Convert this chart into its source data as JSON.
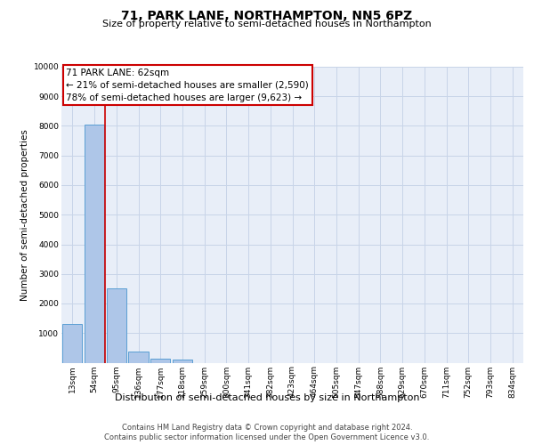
{
  "title": "71, PARK LANE, NORTHAMPTON, NN5 6PZ",
  "subtitle": "Size of property relative to semi-detached houses in Northampton",
  "xlabel_bottom": "Distribution of semi-detached houses by size in Northampton",
  "ylabel": "Number of semi-detached properties",
  "footer_line1": "Contains HM Land Registry data © Crown copyright and database right 2024.",
  "footer_line2": "Contains public sector information licensed under the Open Government Licence v3.0.",
  "categories": [
    "13sqm",
    "54sqm",
    "95sqm",
    "136sqm",
    "177sqm",
    "218sqm",
    "259sqm",
    "300sqm",
    "341sqm",
    "382sqm",
    "423sqm",
    "464sqm",
    "505sqm",
    "547sqm",
    "588sqm",
    "629sqm",
    "670sqm",
    "711sqm",
    "752sqm",
    "793sqm",
    "834sqm"
  ],
  "bar_heights": [
    1300,
    8050,
    2520,
    390,
    140,
    100,
    0,
    0,
    0,
    0,
    0,
    0,
    0,
    0,
    0,
    0,
    0,
    0,
    0,
    0,
    0
  ],
  "bar_color": "#aec6e8",
  "bar_edge_color": "#5a9fd4",
  "vline_x": 1.48,
  "vline_color": "#cc0000",
  "annotation_line1": "71 PARK LANE: 62sqm",
  "annotation_line2": "← 21% of semi-detached houses are smaller (2,590)",
  "annotation_line3": "78% of semi-detached houses are larger (9,623) →",
  "ann_box_facecolor": "#ffffff",
  "ann_box_edgecolor": "#cc0000",
  "ann_fontsize": 7.5,
  "ylim": [
    0,
    10000
  ],
  "yticks": [
    0,
    1000,
    2000,
    3000,
    4000,
    5000,
    6000,
    7000,
    8000,
    9000,
    10000
  ],
  "grid_color": "#c8d4e8",
  "background_color": "#e8eef8",
  "title_fontsize": 10,
  "subtitle_fontsize": 8,
  "ylabel_fontsize": 7.5,
  "tick_fontsize": 6.5,
  "xlabel_fontsize": 8,
  "footer_fontsize": 6,
  "footer_color": "#444444"
}
